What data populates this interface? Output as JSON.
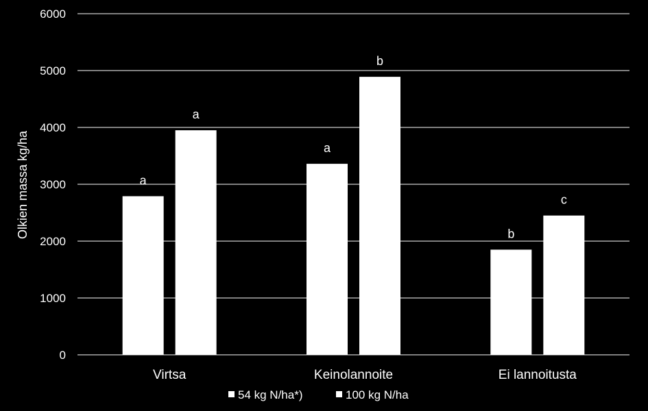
{
  "chart_data": {
    "type": "bar",
    "title": "",
    "xlabel": "",
    "ylabel": "Olkien massa kg/ha",
    "ylim": [
      0,
      6000
    ],
    "yticks": [
      0,
      1000,
      2000,
      3000,
      4000,
      5000,
      6000
    ],
    "grid": "horizontal",
    "legend_position": "bottom",
    "categories": [
      "Virtsa",
      "Keinolannoite",
      "Ei lannoitusta"
    ],
    "series": [
      {
        "name": "54 kg N/ha*)",
        "values": [
          2790,
          3360,
          1850
        ],
        "labels": [
          "a",
          "a",
          "b"
        ]
      },
      {
        "name": "100 kg N/ha",
        "values": [
          3950,
          4890,
          2450
        ],
        "labels": [
          "a",
          "b",
          "c"
        ]
      }
    ],
    "colors": {
      "background": "#000000",
      "bars": "#ffffff",
      "grid": "#ffffff",
      "text": "#ffffff"
    }
  }
}
